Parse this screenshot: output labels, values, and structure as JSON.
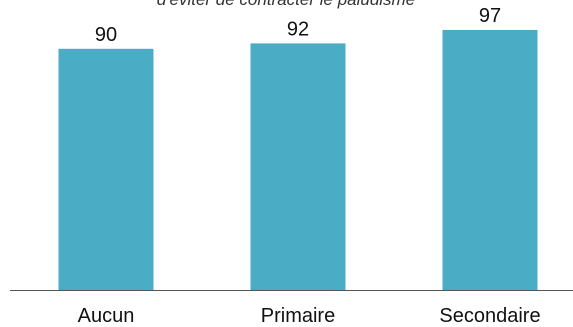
{
  "chart_data": {
    "type": "bar",
    "title": "d'éviter de contracter le paludisme",
    "xlabel": "",
    "ylabel": "",
    "categories": [
      "Aucun",
      "Primaire",
      "Secondaire"
    ],
    "values": [
      90,
      92,
      97
    ],
    "ylim": [
      0,
      100
    ],
    "grid": false,
    "legend": "none",
    "bar_color": "#4BACC6",
    "axis_color": "#555555"
  }
}
